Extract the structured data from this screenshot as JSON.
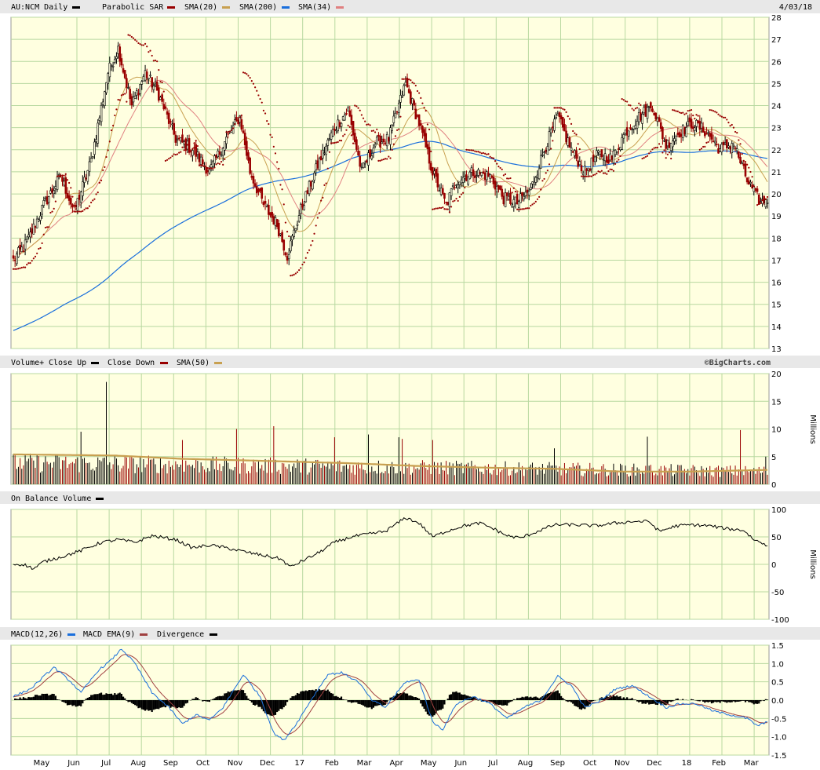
{
  "header": {
    "symbol_label": "AU:NCM Daily",
    "date": "4/03/18",
    "legend": [
      {
        "name": "Parabolic SAR",
        "color": "#990000"
      },
      {
        "name": "SMA(20)",
        "color": "#c8a050"
      },
      {
        "name": "SMA(200)",
        "color": "#1a6fdc"
      },
      {
        "name": "SMA(34)",
        "color": "#e08080"
      }
    ],
    "main_color": "#000000"
  },
  "colors": {
    "panel_bg": "#ffffe0",
    "grid": "#b8d8a0",
    "title_bg": "#e8e8e8",
    "up": "#000000",
    "down": "#990000",
    "sar": "#990000",
    "sma20": "#c8a050",
    "sma200": "#1a6fdc",
    "sma34": "#e08080",
    "vol_sma": "#c8a050",
    "obv": "#000000",
    "macd": "#1a6fdc",
    "macd_ema": "#a04040",
    "divergence": "#000000"
  },
  "watermark": "©BigCharts.com",
  "chart_data": [
    {
      "id": "price",
      "type": "candlestick",
      "title": "AU:NCM Daily",
      "ylim": [
        13,
        28
      ],
      "yticks": [
        13,
        14,
        15,
        16,
        17,
        18,
        19,
        20,
        21,
        22,
        23,
        24,
        25,
        26,
        27,
        28
      ],
      "x_months": [
        "May",
        "Jun",
        "Jul",
        "Aug",
        "Sep",
        "Oct",
        "Nov",
        "Dec",
        "17",
        "Feb",
        "Mar",
        "Apr",
        "May",
        "Jun",
        "Jul",
        "Aug",
        "Sep",
        "Oct",
        "Nov",
        "Dec",
        "18",
        "Feb",
        "Mar"
      ],
      "close_keypoints": [
        [
          0,
          17.0
        ],
        [
          8,
          17.8
        ],
        [
          18,
          19.5
        ],
        [
          28,
          20.8
        ],
        [
          36,
          19.2
        ],
        [
          46,
          21.5
        ],
        [
          56,
          25.5
        ],
        [
          62,
          26.6
        ],
        [
          70,
          24.0
        ],
        [
          78,
          25.5
        ],
        [
          86,
          24.5
        ],
        [
          96,
          22.5
        ],
        [
          106,
          22.0
        ],
        [
          116,
          21.0
        ],
        [
          126,
          22.5
        ],
        [
          134,
          23.5
        ],
        [
          140,
          21.0
        ],
        [
          148,
          19.5
        ],
        [
          156,
          18.6
        ],
        [
          162,
          17.2
        ],
        [
          170,
          19.3
        ],
        [
          180,
          21.3
        ],
        [
          190,
          23.0
        ],
        [
          198,
          23.8
        ],
        [
          206,
          21.0
        ],
        [
          214,
          22.3
        ],
        [
          222,
          22.5
        ],
        [
          232,
          25.0
        ],
        [
          240,
          23.2
        ],
        [
          248,
          21.0
        ],
        [
          256,
          19.5
        ],
        [
          262,
          20.6
        ],
        [
          272,
          21.0
        ],
        [
          282,
          20.8
        ],
        [
          290,
          19.8
        ],
        [
          298,
          19.6
        ],
        [
          306,
          20.2
        ],
        [
          314,
          22.0
        ],
        [
          322,
          23.5
        ],
        [
          330,
          22.0
        ],
        [
          338,
          21.0
        ],
        [
          346,
          21.8
        ],
        [
          354,
          21.6
        ],
        [
          362,
          22.8
        ],
        [
          370,
          23.5
        ],
        [
          378,
          24.0
        ],
        [
          386,
          22.2
        ],
        [
          394,
          22.8
        ],
        [
          402,
          23.2
        ],
        [
          410,
          22.8
        ],
        [
          418,
          22.0
        ],
        [
          426,
          22.3
        ],
        [
          434,
          20.6
        ],
        [
          442,
          19.6
        ],
        [
          446,
          19.8
        ]
      ],
      "sar_cycles": [
        [
          0,
          16.6,
          0,
          26
        ],
        [
          26,
          20.8,
          1,
          10
        ],
        [
          36,
          19.2,
          0,
          32
        ],
        [
          68,
          27.2,
          1,
          22
        ],
        [
          90,
          21.5,
          1,
          20
        ],
        [
          110,
          21.3,
          0,
          16
        ],
        [
          126,
          22.8,
          1,
          10
        ],
        [
          136,
          25.5,
          1,
          28
        ],
        [
          164,
          16.3,
          0,
          24
        ],
        [
          188,
          22.3,
          0,
          14
        ],
        [
          202,
          24.0,
          1,
          14
        ],
        [
          216,
          21.5,
          0,
          14
        ],
        [
          230,
          25.2,
          1,
          18
        ],
        [
          248,
          19.3,
          0,
          20
        ],
        [
          268,
          22.0,
          1,
          30
        ],
        [
          298,
          19.3,
          0,
          22
        ],
        [
          320,
          23.9,
          1,
          16
        ],
        [
          336,
          20.8,
          0,
          24
        ],
        [
          360,
          24.3,
          1,
          12
        ],
        [
          372,
          21.6,
          0,
          18
        ],
        [
          390,
          23.8,
          1,
          16
        ],
        [
          406,
          22.0,
          0,
          6
        ],
        [
          412,
          23.8,
          1,
          20
        ],
        [
          432,
          21.5,
          0,
          8
        ],
        [
          440,
          19.5,
          1,
          7
        ]
      ]
    },
    {
      "id": "volume",
      "type": "bar",
      "title": "Volume+",
      "legend": [
        "Close Up",
        "Close Down",
        "SMA(50)"
      ],
      "ylabel": "Millions",
      "ylim": [
        0,
        20
      ],
      "yticks": [
        0,
        5,
        10,
        15,
        20
      ],
      "typical": 2.8,
      "spikes": [
        [
          55,
          18.5
        ],
        [
          40,
          9.5
        ],
        [
          132,
          10
        ],
        [
          154,
          10.5
        ],
        [
          210,
          9
        ],
        [
          228,
          8.5
        ],
        [
          230,
          8.2
        ],
        [
          248,
          8.0
        ],
        [
          190,
          8.5
        ],
        [
          375,
          8.6
        ],
        [
          430,
          9.8
        ],
        [
          445,
          5.0
        ],
        [
          100,
          8.0
        ],
        [
          320,
          6.5
        ]
      ],
      "sma50_keypoints": [
        [
          0,
          5.4
        ],
        [
          60,
          5.2
        ],
        [
          100,
          4.6
        ],
        [
          140,
          4.3
        ],
        [
          200,
          3.8
        ],
        [
          240,
          3.3
        ],
        [
          280,
          3.0
        ],
        [
          320,
          2.8
        ],
        [
          360,
          2.3
        ],
        [
          400,
          2.3
        ],
        [
          446,
          2.6
        ]
      ]
    },
    {
      "id": "obv",
      "type": "line",
      "title": "On Balance Volume",
      "ylabel": "Millions",
      "ylim": [
        -100,
        100
      ],
      "yticks": [
        -100,
        -50,
        0,
        50,
        100
      ],
      "keypoints": [
        [
          0,
          0
        ],
        [
          6,
          0
        ],
        [
          12,
          -8
        ],
        [
          18,
          5
        ],
        [
          30,
          15
        ],
        [
          40,
          25
        ],
        [
          52,
          40
        ],
        [
          62,
          45
        ],
        [
          72,
          40
        ],
        [
          82,
          52
        ],
        [
          96,
          45
        ],
        [
          106,
          30
        ],
        [
          116,
          35
        ],
        [
          126,
          30
        ],
        [
          138,
          22
        ],
        [
          150,
          15
        ],
        [
          158,
          10
        ],
        [
          164,
          -5
        ],
        [
          170,
          5
        ],
        [
          180,
          20
        ],
        [
          190,
          40
        ],
        [
          200,
          50
        ],
        [
          210,
          55
        ],
        [
          220,
          60
        ],
        [
          232,
          85
        ],
        [
          240,
          75
        ],
        [
          248,
          50
        ],
        [
          256,
          60
        ],
        [
          266,
          70
        ],
        [
          276,
          75
        ],
        [
          284,
          65
        ],
        [
          292,
          52
        ],
        [
          300,
          48
        ],
        [
          310,
          60
        ],
        [
          320,
          72
        ],
        [
          332,
          72
        ],
        [
          344,
          70
        ],
        [
          356,
          75
        ],
        [
          366,
          78
        ],
        [
          376,
          78
        ],
        [
          382,
          60
        ],
        [
          392,
          70
        ],
        [
          402,
          72
        ],
        [
          412,
          70
        ],
        [
          422,
          65
        ],
        [
          432,
          62
        ],
        [
          438,
          45
        ],
        [
          446,
          35
        ]
      ]
    },
    {
      "id": "macd",
      "type": "line",
      "title": "MACD(12,26)",
      "legend": [
        "MACD EMA(9)",
        "Divergence"
      ],
      "ylim": [
        -1.5,
        1.5
      ],
      "yticks": [
        -1.5,
        -1.0,
        -0.5,
        0.0,
        0.5,
        1.0,
        1.5
      ],
      "yticklabels": [
        "-1.5",
        "-1.0",
        "-0.5",
        "0.0",
        "0.5",
        "1.0",
        "1.5"
      ],
      "keypoints": [
        [
          0,
          0.1
        ],
        [
          10,
          0.3
        ],
        [
          24,
          0.9
        ],
        [
          34,
          0.5
        ],
        [
          40,
          0.2
        ],
        [
          50,
          0.8
        ],
        [
          58,
          1.1
        ],
        [
          64,
          1.4
        ],
        [
          72,
          1.0
        ],
        [
          82,
          0.2
        ],
        [
          92,
          -0.2
        ],
        [
          100,
          -0.65
        ],
        [
          108,
          -0.4
        ],
        [
          116,
          -0.55
        ],
        [
          124,
          -0.2
        ],
        [
          136,
          0.7
        ],
        [
          146,
          0.1
        ],
        [
          154,
          -0.9
        ],
        [
          160,
          -1.1
        ],
        [
          168,
          -0.6
        ],
        [
          176,
          0.0
        ],
        [
          186,
          0.7
        ],
        [
          194,
          0.75
        ],
        [
          204,
          0.5
        ],
        [
          212,
          0.0
        ],
        [
          220,
          -0.2
        ],
        [
          232,
          0.5
        ],
        [
          240,
          0.55
        ],
        [
          248,
          -0.6
        ],
        [
          254,
          -0.8
        ],
        [
          262,
          -0.1
        ],
        [
          272,
          0.1
        ],
        [
          282,
          -0.1
        ],
        [
          292,
          -0.5
        ],
        [
          302,
          -0.2
        ],
        [
          312,
          0.0
        ],
        [
          322,
          0.65
        ],
        [
          330,
          0.4
        ],
        [
          338,
          -0.2
        ],
        [
          346,
          -0.05
        ],
        [
          356,
          0.3
        ],
        [
          366,
          0.4
        ],
        [
          376,
          0.1
        ],
        [
          386,
          -0.2
        ],
        [
          394,
          -0.1
        ],
        [
          404,
          -0.1
        ],
        [
          414,
          -0.3
        ],
        [
          424,
          -0.4
        ],
        [
          434,
          -0.5
        ],
        [
          440,
          -0.7
        ],
        [
          446,
          -0.6
        ]
      ]
    }
  ]
}
